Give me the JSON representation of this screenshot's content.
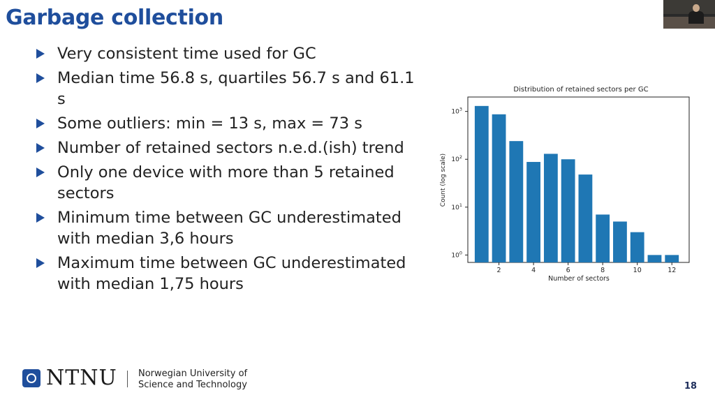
{
  "slide": {
    "title": "Garbage collection",
    "bullets": [
      "Very consistent time used for GC",
      "Median time 56.8 s, quartiles 56.7 s and 61.1 s",
      "Some outliers: min = 13 s, max = 73 s",
      "Number of retained sectors n.e.d.(ish) trend",
      "Only one device with more than 5 retained sectors",
      "Minimum time between GC underestimated with median 3,6 hours",
      "Maximum time between GC underestimated with median 1,75 hours"
    ],
    "page_number": "18"
  },
  "footer": {
    "brand": "NTNU",
    "university_line1": "Norwegian University of",
    "university_line2": "Science and Technology"
  },
  "colors": {
    "accent": "#1f4e9c",
    "bar": "#1f77b4"
  },
  "chart_data": {
    "type": "bar",
    "title": "Distribution of retained sectors per GC",
    "xlabel": "Number of sectors",
    "ylabel": "Count (log scale)",
    "yscale": "log",
    "ylim": [
      0.7,
      2000
    ],
    "xlim": [
      0.2,
      13
    ],
    "grid": false,
    "x": [
      1,
      2,
      3,
      4,
      5,
      6,
      7,
      8,
      9,
      10,
      11,
      12
    ],
    "values": [
      1300,
      870,
      240,
      88,
      130,
      100,
      48,
      7,
      5,
      3,
      1,
      1
    ],
    "xticks": [
      2,
      4,
      6,
      8,
      10,
      12
    ],
    "yticks": [
      {
        "value": 1,
        "base": "10",
        "exp": "0"
      },
      {
        "value": 10,
        "base": "10",
        "exp": "1"
      },
      {
        "value": 100,
        "base": "10",
        "exp": "2"
      },
      {
        "value": 1000,
        "base": "10",
        "exp": "3"
      }
    ]
  }
}
